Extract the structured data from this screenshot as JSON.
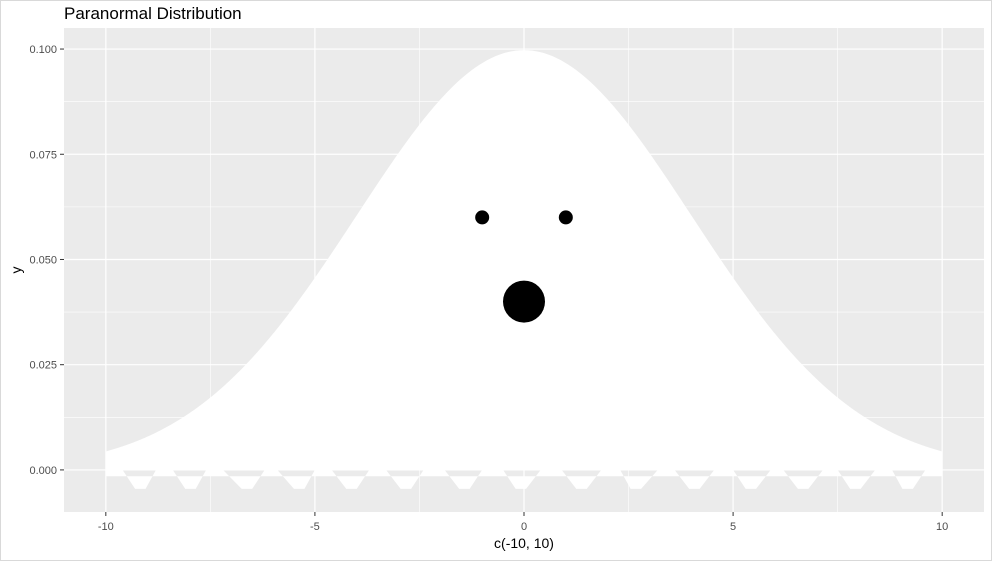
{
  "chart_data": {
    "type": "area",
    "title": "Paranormal Distribution",
    "xlabel": "c(-10, 10)",
    "ylabel": "y",
    "xlim": [
      -11,
      11
    ],
    "ylim": [
      -0.01,
      0.105
    ],
    "x_ticks": [
      -10,
      -5,
      0,
      5,
      10
    ],
    "x_tick_labels": [
      "-10",
      "-5",
      "0",
      "5",
      "10"
    ],
    "y_ticks": [
      0,
      0.025,
      0.05,
      0.075,
      0.1
    ],
    "y_tick_labels": [
      "0.000",
      "0.025",
      "0.050",
      "0.075",
      "0.100"
    ],
    "grid": true,
    "background": "#ebebeb",
    "gridline_color": "#ffffff",
    "ghost_body": {
      "fill": "#ffffff",
      "curve": "normal density, mean 0, sd 4",
      "x_range": [
        -10,
        10
      ]
    },
    "ghost_hem": {
      "points": [
        [
          -9.6,
          0.0
        ],
        [
          -9.3,
          -0.0045
        ],
        [
          -9.05,
          -0.0045
        ],
        [
          -8.8,
          0.0
        ],
        [
          -8.4,
          0.0
        ],
        [
          -8.1,
          -0.0045
        ],
        [
          -7.85,
          -0.0045
        ],
        [
          -7.6,
          0.0
        ],
        [
          -7.2,
          0.0
        ],
        [
          -6.75,
          -0.0045
        ],
        [
          -6.5,
          -0.0045
        ],
        [
          -6.2,
          0.0
        ],
        [
          -5.9,
          0.0
        ],
        [
          -5.5,
          -0.0045
        ],
        [
          -5.25,
          -0.0045
        ],
        [
          -5.0,
          0.0
        ],
        [
          -4.6,
          0.0
        ],
        [
          -4.25,
          -0.0045
        ],
        [
          -4.0,
          -0.0045
        ],
        [
          -3.7,
          0.0
        ],
        [
          -3.3,
          0.0
        ],
        [
          -2.95,
          -0.0045
        ],
        [
          -2.7,
          -0.0045
        ],
        [
          -2.4,
          0.0
        ],
        [
          -1.9,
          0.0
        ],
        [
          -1.55,
          -0.0045
        ],
        [
          -1.3,
          -0.0045
        ],
        [
          -1.0,
          0.0
        ],
        [
          -0.5,
          0.0
        ],
        [
          -0.2,
          -0.0045
        ],
        [
          0.05,
          -0.0045
        ],
        [
          0.4,
          0.0
        ],
        [
          0.9,
          0.0
        ],
        [
          1.25,
          -0.0045
        ],
        [
          1.5,
          -0.0045
        ],
        [
          1.85,
          0.0
        ],
        [
          2.3,
          0.0
        ],
        [
          2.55,
          -0.0045
        ],
        [
          2.8,
          -0.0045
        ],
        [
          3.2,
          0.0
        ],
        [
          3.6,
          0.0
        ],
        [
          3.95,
          -0.0045
        ],
        [
          4.2,
          -0.0045
        ],
        [
          4.55,
          0.0
        ],
        [
          5.0,
          0.0
        ],
        [
          5.3,
          -0.0045
        ],
        [
          5.55,
          -0.0045
        ],
        [
          5.9,
          0.0
        ],
        [
          6.2,
          0.0
        ],
        [
          6.55,
          -0.0045
        ],
        [
          6.8,
          -0.0045
        ],
        [
          7.15,
          0.0
        ],
        [
          7.5,
          0.0
        ],
        [
          7.8,
          -0.0045
        ],
        [
          8.05,
          -0.0045
        ],
        [
          8.4,
          0.0
        ],
        [
          8.8,
          0.0
        ],
        [
          9.05,
          -0.0045
        ],
        [
          9.3,
          -0.0045
        ],
        [
          9.6,
          0.0
        ]
      ]
    },
    "face": [
      {
        "name": "left-eye",
        "x": -1,
        "y": 0.06,
        "size": 7
      },
      {
        "name": "right-eye",
        "x": 1,
        "y": 0.06,
        "size": 7
      },
      {
        "name": "mouth",
        "x": 0,
        "y": 0.04,
        "size": 21
      }
    ]
  }
}
